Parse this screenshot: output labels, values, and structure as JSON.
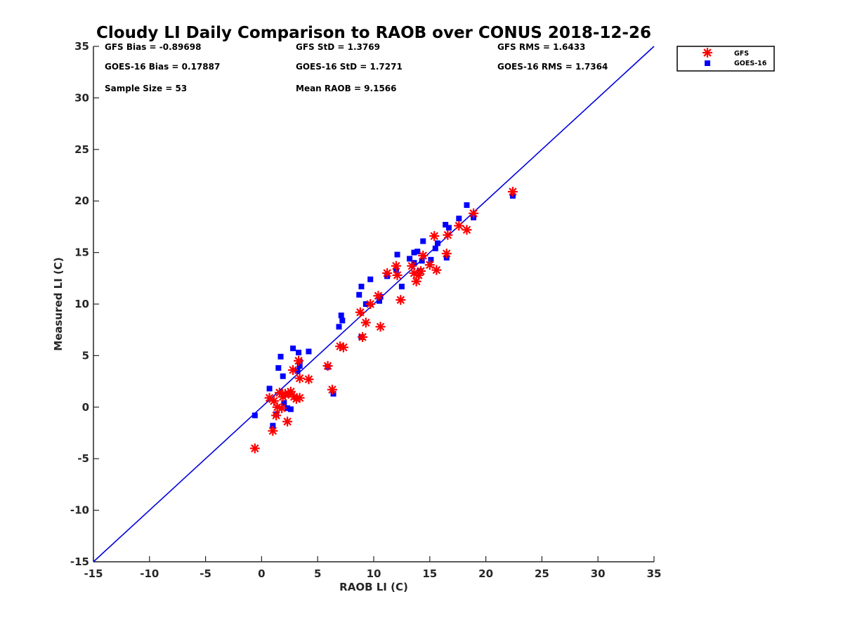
{
  "chart_data": {
    "type": "scatter",
    "title": "Cloudy LI Daily Comparison to RAOB over CONUS 2018-12-26",
    "xlabel": "RAOB LI (C)",
    "ylabel": "Measured LI (C)",
    "xlim": [
      -15,
      35
    ],
    "ylim": [
      -15,
      35
    ],
    "xticks": [
      -15,
      -10,
      -5,
      0,
      5,
      10,
      15,
      20,
      25,
      30,
      35
    ],
    "yticks": [
      -15,
      -10,
      -5,
      0,
      5,
      10,
      15,
      20,
      25,
      30,
      35
    ],
    "grid": false,
    "legend_position": "outside top-right",
    "reference_line": {
      "x": [
        -15,
        35
      ],
      "y": [
        -15,
        35
      ],
      "color": "#0000dd"
    },
    "stats": [
      [
        "GFS Bias = -0.89698",
        "GFS StD = 1.3769",
        "GFS RMS = 1.6433"
      ],
      [
        "GOES-16 Bias = 0.17887",
        "GOES-16 StD = 1.7271",
        "GOES-16 RMS = 1.7364"
      ],
      [
        "Sample Size = 53",
        "Mean RAOB = 9.1566",
        ""
      ]
    ],
    "series": [
      {
        "name": "GFS",
        "marker": "asterisk",
        "color": "#ff0000",
        "points": [
          [
            -0.6,
            -4.0
          ],
          [
            0.7,
            0.9
          ],
          [
            1.0,
            -2.3
          ],
          [
            1.1,
            0.6
          ],
          [
            1.3,
            -0.8
          ],
          [
            1.4,
            0.0
          ],
          [
            1.6,
            1.4
          ],
          [
            1.8,
            -0.1
          ],
          [
            1.9,
            1.0
          ],
          [
            2.1,
            1.3
          ],
          [
            2.3,
            -1.4
          ],
          [
            2.4,
            1.3
          ],
          [
            2.6,
            1.5
          ],
          [
            2.8,
            3.6
          ],
          [
            2.9,
            1.0
          ],
          [
            3.1,
            0.8
          ],
          [
            3.3,
            4.5
          ],
          [
            3.4,
            0.9
          ],
          [
            3.4,
            2.8
          ],
          [
            4.2,
            2.7
          ],
          [
            5.9,
            4.0
          ],
          [
            6.3,
            1.7
          ],
          [
            7.0,
            5.9
          ],
          [
            7.3,
            5.8
          ],
          [
            8.8,
            9.2
          ],
          [
            9.0,
            6.8
          ],
          [
            9.3,
            8.2
          ],
          [
            9.7,
            10.0
          ],
          [
            10.4,
            10.8
          ],
          [
            10.6,
            7.8
          ],
          [
            11.2,
            13.0
          ],
          [
            12.0,
            13.7
          ],
          [
            12.1,
            12.8
          ],
          [
            12.4,
            10.4
          ],
          [
            13.4,
            13.7
          ],
          [
            13.6,
            13.0
          ],
          [
            13.8,
            12.2
          ],
          [
            14.0,
            12.8
          ],
          [
            14.2,
            13.2
          ],
          [
            14.4,
            14.7
          ],
          [
            15.0,
            13.8
          ],
          [
            15.4,
            16.6
          ],
          [
            15.6,
            13.3
          ],
          [
            16.5,
            14.9
          ],
          [
            16.6,
            16.7
          ],
          [
            17.6,
            17.6
          ],
          [
            18.3,
            17.2
          ],
          [
            18.9,
            18.8
          ],
          [
            22.4,
            20.9
          ]
        ]
      },
      {
        "name": "GOES-16",
        "marker": "square",
        "color": "#0000ff",
        "points": [
          [
            -0.6,
            -0.8
          ],
          [
            0.7,
            1.8
          ],
          [
            1.0,
            -1.8
          ],
          [
            1.3,
            -0.7
          ],
          [
            1.5,
            3.8
          ],
          [
            1.7,
            4.9
          ],
          [
            1.9,
            3.0
          ],
          [
            2.0,
            0.4
          ],
          [
            2.3,
            -0.1
          ],
          [
            2.6,
            -0.2
          ],
          [
            2.8,
            5.7
          ],
          [
            3.2,
            3.5
          ],
          [
            3.3,
            5.3
          ],
          [
            3.4,
            4.0
          ],
          [
            3.4,
            4.4
          ],
          [
            4.2,
            5.4
          ],
          [
            5.9,
            3.9
          ],
          [
            6.4,
            1.3
          ],
          [
            6.9,
            7.8
          ],
          [
            7.1,
            8.9
          ],
          [
            7.2,
            8.4
          ],
          [
            8.7,
            10.9
          ],
          [
            8.9,
            11.7
          ],
          [
            8.9,
            6.8
          ],
          [
            9.3,
            10.0
          ],
          [
            9.7,
            12.4
          ],
          [
            10.5,
            10.3
          ],
          [
            10.6,
            10.7
          ],
          [
            11.2,
            12.7
          ],
          [
            12.0,
            13.3
          ],
          [
            12.1,
            14.8
          ],
          [
            12.5,
            11.7
          ],
          [
            13.2,
            14.4
          ],
          [
            13.6,
            14.0
          ],
          [
            13.6,
            15.0
          ],
          [
            13.9,
            15.1
          ],
          [
            14.1,
            13.2
          ],
          [
            14.3,
            14.2
          ],
          [
            14.4,
            16.1
          ],
          [
            15.1,
            14.3
          ],
          [
            15.5,
            15.4
          ],
          [
            15.7,
            15.9
          ],
          [
            16.4,
            17.7
          ],
          [
            16.5,
            14.5
          ],
          [
            16.7,
            17.4
          ],
          [
            17.6,
            18.3
          ],
          [
            18.3,
            19.6
          ],
          [
            18.9,
            18.4
          ],
          [
            22.4,
            20.5
          ]
        ]
      }
    ]
  }
}
